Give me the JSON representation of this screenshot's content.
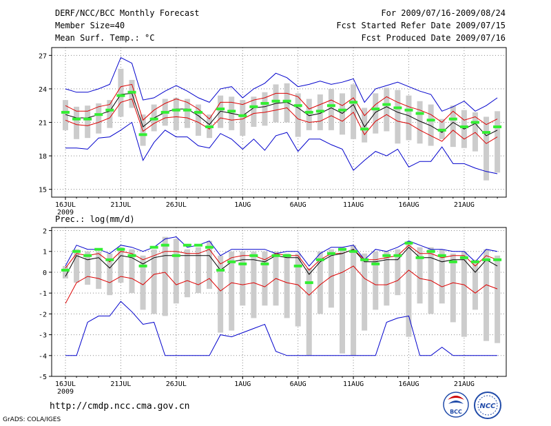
{
  "header": {
    "title": "DERF/NCC/BCC Monthly Forecast",
    "member_size": "Member Size=40",
    "variable": "Mean Surf. Temp.: °C",
    "period": "For 2009/07/16-2009/08/24",
    "started": "Fcst Started Refer Date 2009/07/15",
    "produced": "Fcst Produced Date 2009/07/16"
  },
  "footer": {
    "url": "http://cmdp.ncc.cma.gov.cn",
    "grads": "GrADS: COLA/IGES",
    "logo_left": "BCC",
    "logo_right": "NCC"
  },
  "colors": {
    "max": "#0000cc",
    "min": "#0000cc",
    "upper": "#dd0000",
    "lower": "#dd0000",
    "mean": "#000000",
    "obs": "#33ee33",
    "box": "#cccccc"
  },
  "chart_data": [
    {
      "type": "box-line",
      "title": "",
      "ylabel": "Mean Surf. Temp.: °C",
      "ylim": [
        14.3,
        27.7
      ],
      "yticks": [
        15,
        18,
        21,
        24,
        27
      ],
      "x_start_day": 0,
      "x_end_day": 39,
      "xticks": [
        {
          "day": 0,
          "label": "16JUL",
          "sub": "2009"
        },
        {
          "day": 5,
          "label": "21JUL",
          "sub": ""
        },
        {
          "day": 10,
          "label": "26JUL",
          "sub": ""
        },
        {
          "day": 16,
          "label": "1AUG",
          "sub": ""
        },
        {
          "day": 21,
          "label": "6AUG",
          "sub": ""
        },
        {
          "day": 26,
          "label": "11AUG",
          "sub": ""
        },
        {
          "day": 31,
          "label": "16AUG",
          "sub": ""
        },
        {
          "day": 36,
          "label": "21AUG",
          "sub": ""
        }
      ],
      "series": [
        {
          "name": "max",
          "values": [
            24.0,
            23.7,
            23.7,
            24.0,
            24.4,
            26.8,
            26.3,
            23.0,
            23.2,
            23.8,
            24.3,
            23.8,
            23.2,
            22.8,
            24.0,
            24.2,
            23.2,
            24.0,
            24.5,
            25.4,
            25.0,
            24.2,
            24.4,
            24.7,
            24.4,
            24.6,
            24.9,
            22.8,
            24.0,
            24.3,
            24.6,
            24.2,
            23.8,
            23.5,
            22.0,
            22.4,
            22.9,
            22.0,
            22.5,
            23.2
          ]
        },
        {
          "name": "upper",
          "values": [
            22.5,
            22.0,
            22.0,
            22.4,
            22.6,
            24.2,
            24.4,
            21.2,
            22.1,
            22.7,
            23.1,
            22.8,
            22.2,
            21.3,
            22.8,
            22.8,
            22.6,
            23.0,
            23.2,
            23.6,
            23.6,
            23.3,
            22.2,
            22.6,
            23.0,
            22.5,
            23.2,
            21.6,
            22.6,
            23.3,
            22.8,
            22.4,
            22.1,
            21.7,
            21.0,
            22.0,
            21.2,
            21.5,
            20.8,
            21.3
          ]
        },
        {
          "name": "mean",
          "values": [
            21.7,
            21.4,
            21.4,
            21.7,
            22.0,
            23.5,
            23.6,
            20.6,
            21.4,
            21.9,
            22.2,
            22.2,
            21.6,
            20.8,
            22.0,
            21.8,
            21.6,
            22.3,
            22.4,
            22.7,
            22.8,
            22.3,
            21.6,
            21.8,
            22.3,
            21.8,
            22.6,
            20.6,
            21.9,
            22.4,
            21.9,
            21.6,
            21.1,
            20.7,
            20.1,
            21.0,
            20.4,
            20.9,
            19.8,
            20.3
          ]
        },
        {
          "name": "lower",
          "values": [
            21.2,
            20.8,
            20.7,
            21.0,
            21.4,
            22.8,
            23.1,
            20.2,
            20.9,
            21.4,
            21.5,
            21.4,
            21.0,
            20.4,
            21.4,
            21.2,
            21.3,
            21.8,
            21.9,
            22.1,
            22.3,
            21.3,
            21.0,
            21.1,
            21.6,
            21.1,
            21.9,
            19.9,
            21.1,
            21.7,
            21.1,
            20.9,
            20.3,
            19.8,
            19.3,
            20.3,
            19.5,
            20.1,
            19.1,
            19.7
          ]
        },
        {
          "name": "min",
          "values": [
            18.7,
            18.7,
            18.6,
            19.6,
            19.7,
            20.3,
            21.0,
            17.6,
            19.2,
            20.3,
            19.7,
            19.7,
            18.9,
            18.7,
            20.0,
            19.5,
            18.6,
            19.5,
            18.5,
            19.8,
            20.1,
            18.4,
            19.5,
            19.5,
            19.0,
            18.6,
            16.7,
            17.6,
            18.4,
            18.0,
            18.6,
            17.0,
            17.5,
            17.5,
            18.8,
            17.3,
            17.3,
            16.9,
            16.6,
            16.4
          ]
        },
        {
          "name": "observed",
          "values": [
            21.9,
            21.3,
            21.3,
            21.7,
            22.1,
            23.4,
            23.7,
            19.9,
            21.3,
            21.9,
            22.1,
            22.1,
            21.9,
            20.6,
            22.2,
            22.0,
            21.6,
            22.4,
            22.7,
            22.9,
            22.9,
            22.5,
            21.9,
            22.0,
            22.5,
            22.1,
            22.8,
            20.4,
            22.2,
            22.6,
            22.3,
            22.1,
            21.8,
            21.2,
            20.3,
            21.3,
            20.6,
            21.0,
            20.1,
            20.6
          ]
        }
      ],
      "box_low": [
        20.3,
        19.5,
        19.6,
        20.0,
        20.5,
        21.5,
        22.3,
        18.9,
        20.2,
        20.7,
        20.3,
        20.5,
        19.8,
        19.6,
        20.5,
        20.3,
        19.8,
        20.6,
        20.7,
        21.0,
        21.0,
        19.7,
        20.3,
        20.3,
        20.3,
        19.9,
        19.5,
        19.2,
        20.0,
        20.2,
        19.1,
        19.4,
        19.1,
        18.9,
        19.5,
        18.8,
        18.7,
        18.4,
        15.8,
        16.5
      ],
      "box_high": [
        23.0,
        22.4,
        22.5,
        22.7,
        23.0,
        25.8,
        24.8,
        21.7,
        22.6,
        23.1,
        23.2,
        23.1,
        22.6,
        21.7,
        23.4,
        23.3,
        23.0,
        23.3,
        23.7,
        24.4,
        24.5,
        23.6,
        23.1,
        23.5,
        24.0,
        23.6,
        24.4,
        22.3,
        23.6,
        24.1,
        23.9,
        23.4,
        22.9,
        22.6,
        21.3,
        22.5,
        22.1,
        21.9,
        21.5,
        22.0
      ]
    },
    {
      "type": "box-line",
      "title": "Prec.: log(mm/d)",
      "ylabel": "Prec.: log(mm/d)",
      "ylim": [
        -5,
        2.15
      ],
      "yticks": [
        -5,
        -4,
        -3,
        -2,
        -1,
        0,
        1,
        2
      ],
      "x_start_day": 0,
      "x_end_day": 39,
      "xticks": [
        {
          "day": 0,
          "label": "16JUL",
          "sub": "2009"
        },
        {
          "day": 5,
          "label": "21JUL",
          "sub": ""
        },
        {
          "day": 10,
          "label": "26JUL",
          "sub": ""
        },
        {
          "day": 16,
          "label": "1AUG",
          "sub": ""
        },
        {
          "day": 21,
          "label": "6AUG",
          "sub": ""
        },
        {
          "day": 26,
          "label": "11AUG",
          "sub": ""
        },
        {
          "day": 31,
          "label": "16AUG",
          "sub": ""
        },
        {
          "day": 36,
          "label": "21AUG",
          "sub": ""
        }
      ],
      "series": [
        {
          "name": "max",
          "values": [
            0.3,
            1.3,
            1.1,
            1.1,
            0.9,
            1.3,
            1.2,
            1.0,
            1.2,
            1.6,
            1.7,
            1.2,
            1.3,
            1.5,
            0.8,
            1.1,
            1.1,
            1.1,
            1.1,
            0.9,
            1.0,
            1.0,
            0.3,
            0.9,
            1.2,
            1.2,
            1.3,
            0.6,
            1.1,
            1.0,
            1.2,
            1.5,
            1.3,
            1.1,
            1.1,
            1.0,
            1.0,
            0.5,
            1.1,
            1.0
          ]
        },
        {
          "name": "upper",
          "values": [
            0.2,
            0.9,
            0.8,
            0.9,
            0.5,
            1.0,
            0.9,
            0.6,
            0.8,
            1.0,
            1.0,
            0.9,
            0.9,
            1.1,
            0.4,
            0.7,
            0.8,
            0.8,
            0.6,
            0.9,
            0.8,
            0.8,
            0.1,
            0.6,
            0.9,
            0.9,
            1.1,
            0.6,
            0.6,
            0.7,
            0.8,
            1.3,
            0.9,
            0.9,
            0.7,
            0.8,
            0.8,
            0.3,
            0.8,
            0.6
          ]
        },
        {
          "name": "mean",
          "values": [
            -0.2,
            0.8,
            0.6,
            0.7,
            0.2,
            0.8,
            0.7,
            0.4,
            0.7,
            0.8,
            0.8,
            0.8,
            0.8,
            0.8,
            0.1,
            0.5,
            0.6,
            0.6,
            0.5,
            0.8,
            0.7,
            0.7,
            -0.1,
            0.5,
            0.8,
            0.9,
            1.1,
            0.5,
            0.5,
            0.6,
            0.6,
            1.2,
            0.7,
            0.7,
            0.5,
            0.6,
            0.6,
            0.0,
            0.6,
            0.3
          ]
        },
        {
          "name": "lower",
          "values": [
            -1.5,
            -0.5,
            -0.2,
            -0.3,
            -0.5,
            -0.2,
            -0.3,
            -0.6,
            -0.1,
            0.0,
            -0.6,
            -0.4,
            -0.6,
            -0.3,
            -0.9,
            -0.5,
            -0.6,
            -0.5,
            -0.7,
            -0.3,
            -0.5,
            -0.6,
            -1.1,
            -0.6,
            -0.2,
            0.0,
            0.3,
            -0.3,
            -0.6,
            -0.6,
            -0.4,
            0.1,
            -0.3,
            -0.4,
            -0.7,
            -0.5,
            -0.6,
            -1.0,
            -0.6,
            -0.8
          ]
        },
        {
          "name": "min",
          "values": [
            -4.0,
            -4.0,
            -2.4,
            -2.1,
            -2.1,
            -1.4,
            -1.9,
            -2.5,
            -2.4,
            -4.0,
            -4.0,
            -4.0,
            -4.0,
            -4.0,
            -3.0,
            -3.1,
            -2.9,
            -2.7,
            -2.5,
            -3.8,
            -4.0,
            -4.0,
            -4.0,
            -4.0,
            -4.0,
            -4.0,
            -4.0,
            -4.0,
            -4.0,
            -2.4,
            -2.2,
            -2.1,
            -4.0,
            -4.0,
            -3.6,
            -4.0,
            -4.0,
            -4.0,
            -4.0,
            -4.0
          ]
        },
        {
          "name": "observed",
          "values": [
            0.1,
            1.0,
            0.8,
            1.1,
            0.6,
            1.1,
            0.8,
            0.3,
            1.2,
            1.3,
            0.8,
            1.3,
            1.3,
            1.2,
            0.1,
            0.5,
            0.4,
            0.8,
            0.4,
            0.8,
            0.8,
            0.3,
            -0.5,
            0.6,
            0.9,
            1.1,
            1.0,
            0.6,
            0.4,
            0.8,
            0.8,
            1.4,
            0.7,
            1.0,
            0.8,
            0.5,
            0.7,
            0.5,
            0.6,
            0.6
          ]
        }
      ],
      "box_low": [
        -0.3,
        -0.5,
        -0.6,
        -0.8,
        -1.1,
        -0.5,
        -1.0,
        -1.8,
        -2.0,
        -2.1,
        -1.5,
        -1.2,
        -1.0,
        -0.8,
        -2.9,
        -2.8,
        -1.6,
        -2.2,
        -1.6,
        -1.6,
        -2.2,
        -2.6,
        -4.0,
        -2.0,
        -1.7,
        -3.9,
        -4.0,
        -2.8,
        -1.8,
        -1.6,
        -1.1,
        -3.1,
        -1.5,
        -2.0,
        -1.5,
        -2.4,
        -3.1,
        -1.8,
        -3.3,
        -3.4
      ],
      "box_high": [
        0.3,
        1.1,
        1.0,
        1.0,
        0.9,
        1.2,
        1.1,
        0.8,
        1.1,
        1.7,
        1.6,
        1.1,
        1.2,
        1.5,
        0.8,
        1.0,
        1.0,
        1.0,
        1.0,
        1.0,
        0.9,
        0.9,
        0.2,
        1.0,
        1.1,
        1.2,
        1.3,
        0.9,
        1.0,
        1.0,
        1.1,
        1.5,
        1.2,
        1.2,
        1.1,
        0.9,
        1.0,
        0.6,
        1.1,
        0.8
      ]
    }
  ]
}
